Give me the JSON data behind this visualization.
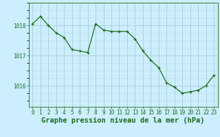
{
  "x": [
    0,
    1,
    2,
    3,
    4,
    5,
    6,
    7,
    8,
    9,
    10,
    11,
    12,
    13,
    14,
    15,
    16,
    17,
    18,
    19,
    20,
    21,
    22,
    23
  ],
  "y": [
    1018.05,
    1018.3,
    1018.0,
    1017.75,
    1017.6,
    1017.2,
    1017.15,
    1017.1,
    1018.05,
    1017.85,
    1017.8,
    1017.8,
    1017.8,
    1017.55,
    1017.15,
    1016.85,
    1016.6,
    1016.1,
    1015.95,
    1015.75,
    1015.8,
    1015.85,
    1016.0,
    1016.35
  ],
  "line_color": "#1a6b1a",
  "marker_color": "#1a6b1a",
  "bg_color": "#cceeff",
  "grid_major_color": "#aacccc",
  "grid_minor_color": "#bbdddd",
  "axis_label_color": "#1a6b1a",
  "tick_color": "#1a6b1a",
  "xlabel": "Graphe pression niveau de la mer (hPa)",
  "yticks": [
    1016,
    1017,
    1018
  ],
  "ylim": [
    1015.3,
    1018.75
  ],
  "xlim": [
    -0.5,
    23.5
  ],
  "xlabel_fontsize": 7.5,
  "tick_fontsize": 5.5
}
